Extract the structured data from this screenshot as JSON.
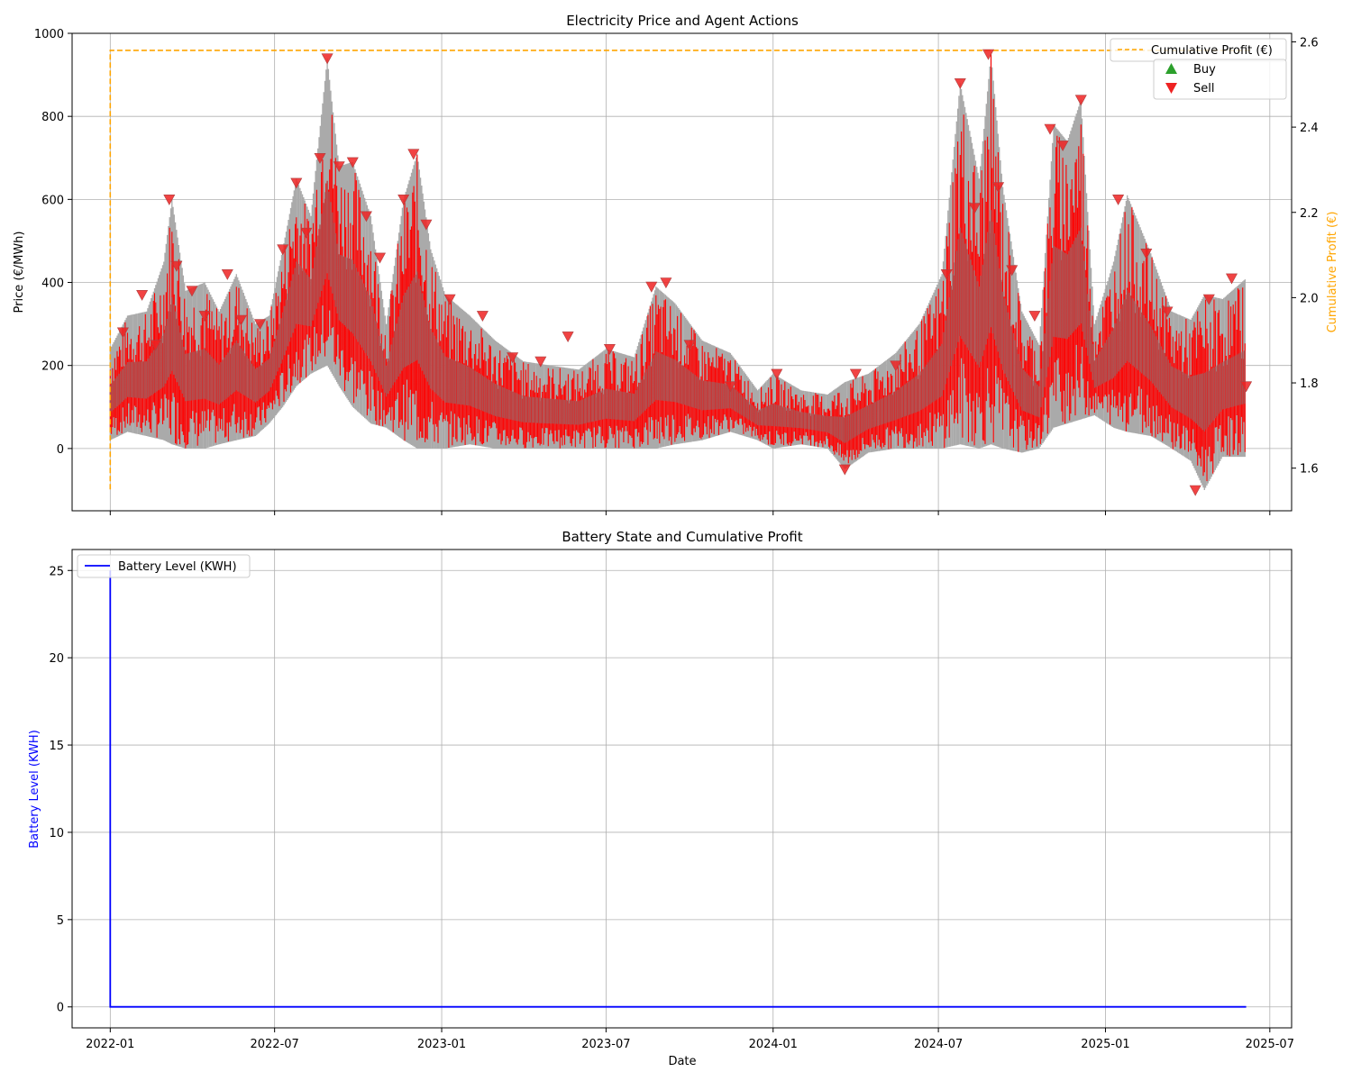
{
  "chart_data": [
    {
      "type": "line",
      "title": "Electricity Price and Agent Actions",
      "xlabel": "",
      "ylabel": "Price (€/MWh)",
      "ylabel_right": "Cumulative Profit (€)",
      "xlim": [
        "2021-11-20",
        "2025-07-25"
      ],
      "ylim": [
        -150,
        1000
      ],
      "ylim_right": [
        1.5,
        2.62
      ],
      "grid": true,
      "legend_position": "top-right",
      "x_ticks": [
        "2022-01",
        "2022-07",
        "2023-01",
        "2023-07",
        "2024-01",
        "2024-07",
        "2025-01",
        "2025-07"
      ],
      "y_ticks": [
        0,
        200,
        400,
        600,
        800,
        1000
      ],
      "y_ticks_right": [
        1.6,
        1.8,
        2.0,
        2.2,
        2.4,
        2.6
      ],
      "colors": {
        "price": "#aaaaaa",
        "buy": "#2ca02c",
        "sell": "#ee2222",
        "profit": "#ffa500",
        "sell_fill": "#ff0000"
      },
      "series": [
        {
          "name": "Cumulative Profit (€)",
          "axis": "right",
          "style": "dashed",
          "points": [
            [
              "2022-01-01",
              1.55
            ],
            [
              "2022-01-02",
              2.58
            ],
            [
              "2025-06-10",
              2.58
            ]
          ]
        },
        {
          "name": "Buy",
          "marker": "triangle-up",
          "points": []
        },
        {
          "name": "Sell",
          "marker": "triangle-down",
          "points": [
            [
              "2022-01-15",
              280
            ],
            [
              "2022-02-05",
              370
            ],
            [
              "2022-02-20",
              250
            ],
            [
              "2022-03-07",
              600
            ],
            [
              "2022-03-15",
              440
            ],
            [
              "2022-04-01",
              380
            ],
            [
              "2022-04-15",
              320
            ],
            [
              "2022-05-10",
              420
            ],
            [
              "2022-05-25",
              310
            ],
            [
              "2022-06-15",
              300
            ],
            [
              "2022-07-10",
              480
            ],
            [
              "2022-07-25",
              640
            ],
            [
              "2022-08-05",
              520
            ],
            [
              "2022-08-20",
              700
            ],
            [
              "2022-08-28",
              940
            ],
            [
              "2022-09-10",
              680
            ],
            [
              "2022-09-25",
              690
            ],
            [
              "2022-10-10",
              560
            ],
            [
              "2022-10-25",
              460
            ],
            [
              "2022-11-20",
              600
            ],
            [
              "2022-12-01",
              710
            ],
            [
              "2022-12-15",
              540
            ],
            [
              "2023-01-10",
              360
            ],
            [
              "2023-02-15",
              320
            ],
            [
              "2023-03-20",
              220
            ],
            [
              "2023-04-20",
              210
            ],
            [
              "2023-05-20",
              270
            ],
            [
              "2023-07-05",
              240
            ],
            [
              "2023-08-20",
              390
            ],
            [
              "2023-09-05",
              400
            ],
            [
              "2023-10-01",
              250
            ],
            [
              "2023-11-15",
              150
            ],
            [
              "2024-01-05",
              180
            ],
            [
              "2024-03-20",
              -50
            ],
            [
              "2024-04-01",
              180
            ],
            [
              "2024-05-15",
              200
            ],
            [
              "2024-07-10",
              420
            ],
            [
              "2024-07-25",
              880
            ],
            [
              "2024-08-10",
              580
            ],
            [
              "2024-08-25",
              950
            ],
            [
              "2024-09-05",
              630
            ],
            [
              "2024-09-20",
              430
            ],
            [
              "2024-10-15",
              320
            ],
            [
              "2024-11-01",
              770
            ],
            [
              "2024-11-15",
              730
            ],
            [
              "2024-12-05",
              840
            ],
            [
              "2025-01-15",
              600
            ],
            [
              "2025-02-15",
              470
            ],
            [
              "2025-03-10",
              330
            ],
            [
              "2025-04-10",
              -100
            ],
            [
              "2025-04-25",
              360
            ],
            [
              "2025-05-20",
              410
            ],
            [
              "2025-06-05",
              150
            ]
          ]
        }
      ],
      "price_envelope": [
        [
          "2022-01-01",
          20,
          240
        ],
        [
          "2022-01-20",
          40,
          320
        ],
        [
          "2022-02-10",
          30,
          330
        ],
        [
          "2022-03-01",
          20,
          450
        ],
        [
          "2022-03-10",
          10,
          600
        ],
        [
          "2022-03-25",
          0,
          380
        ],
        [
          "2022-04-15",
          0,
          400
        ],
        [
          "2022-05-01",
          10,
          330
        ],
        [
          "2022-05-20",
          20,
          420
        ],
        [
          "2022-06-10",
          30,
          300
        ],
        [
          "2022-06-25",
          60,
          320
        ],
        [
          "2022-07-10",
          100,
          480
        ],
        [
          "2022-07-25",
          150,
          650
        ],
        [
          "2022-08-10",
          180,
          560
        ],
        [
          "2022-08-28",
          200,
          940
        ],
        [
          "2022-09-10",
          150,
          680
        ],
        [
          "2022-09-25",
          100,
          690
        ],
        [
          "2022-10-15",
          60,
          560
        ],
        [
          "2022-11-01",
          50,
          300
        ],
        [
          "2022-11-20",
          20,
          600
        ],
        [
          "2022-12-05",
          0,
          710
        ],
        [
          "2022-12-20",
          0,
          480
        ],
        [
          "2023-01-05",
          0,
          370
        ],
        [
          "2023-02-01",
          10,
          320
        ],
        [
          "2023-03-01",
          0,
          260
        ],
        [
          "2023-04-01",
          0,
          210
        ],
        [
          "2023-05-01",
          0,
          200
        ],
        [
          "2023-06-01",
          0,
          190
        ],
        [
          "2023-07-01",
          0,
          240
        ],
        [
          "2023-08-01",
          0,
          220
        ],
        [
          "2023-08-25",
          0,
          390
        ],
        [
          "2023-09-15",
          10,
          350
        ],
        [
          "2023-10-15",
          20,
          260
        ],
        [
          "2023-11-15",
          40,
          230
        ],
        [
          "2023-12-15",
          20,
          140
        ],
        [
          "2024-01-01",
          0,
          180
        ],
        [
          "2024-02-01",
          10,
          140
        ],
        [
          "2024-03-01",
          0,
          130
        ],
        [
          "2024-03-20",
          -50,
          160
        ],
        [
          "2024-04-15",
          -10,
          180
        ],
        [
          "2024-05-15",
          0,
          230
        ],
        [
          "2024-06-10",
          0,
          300
        ],
        [
          "2024-07-05",
          0,
          420
        ],
        [
          "2024-07-25",
          10,
          880
        ],
        [
          "2024-08-15",
          0,
          650
        ],
        [
          "2024-08-28",
          10,
          950
        ],
        [
          "2024-09-10",
          0,
          630
        ],
        [
          "2024-10-01",
          -10,
          330
        ],
        [
          "2024-10-20",
          0,
          250
        ],
        [
          "2024-11-05",
          50,
          780
        ],
        [
          "2024-11-20",
          60,
          740
        ],
        [
          "2024-12-05",
          70,
          840
        ],
        [
          "2024-12-20",
          80,
          300
        ],
        [
          "2025-01-10",
          50,
          450
        ],
        [
          "2025-01-25",
          40,
          610
        ],
        [
          "2025-02-20",
          30,
          470
        ],
        [
          "2025-03-15",
          0,
          330
        ],
        [
          "2025-04-05",
          -30,
          310
        ],
        [
          "2025-04-20",
          -100,
          370
        ],
        [
          "2025-05-10",
          -20,
          360
        ],
        [
          "2025-06-05",
          -20,
          410
        ]
      ]
    },
    {
      "type": "line",
      "title": "Battery State and Cumulative Profit",
      "xlabel": "Date",
      "ylabel": "Battery Level (KWH)",
      "xlim": [
        "2021-11-20",
        "2025-07-25"
      ],
      "ylim": [
        -1.2,
        26.2
      ],
      "grid": true,
      "legend_position": "top-left",
      "x_ticks": [
        "2022-01",
        "2022-07",
        "2023-01",
        "2023-07",
        "2024-01",
        "2024-07",
        "2025-01",
        "2025-07"
      ],
      "y_ticks": [
        0,
        5,
        10,
        15,
        20,
        25
      ],
      "colors": {
        "battery": "#0000ff"
      },
      "series": [
        {
          "name": "Battery Level (KWH)",
          "points": [
            [
              "2022-01-01",
              25
            ],
            [
              "2022-01-01",
              0
            ],
            [
              "2025-06-05",
              0
            ]
          ]
        }
      ]
    }
  ]
}
